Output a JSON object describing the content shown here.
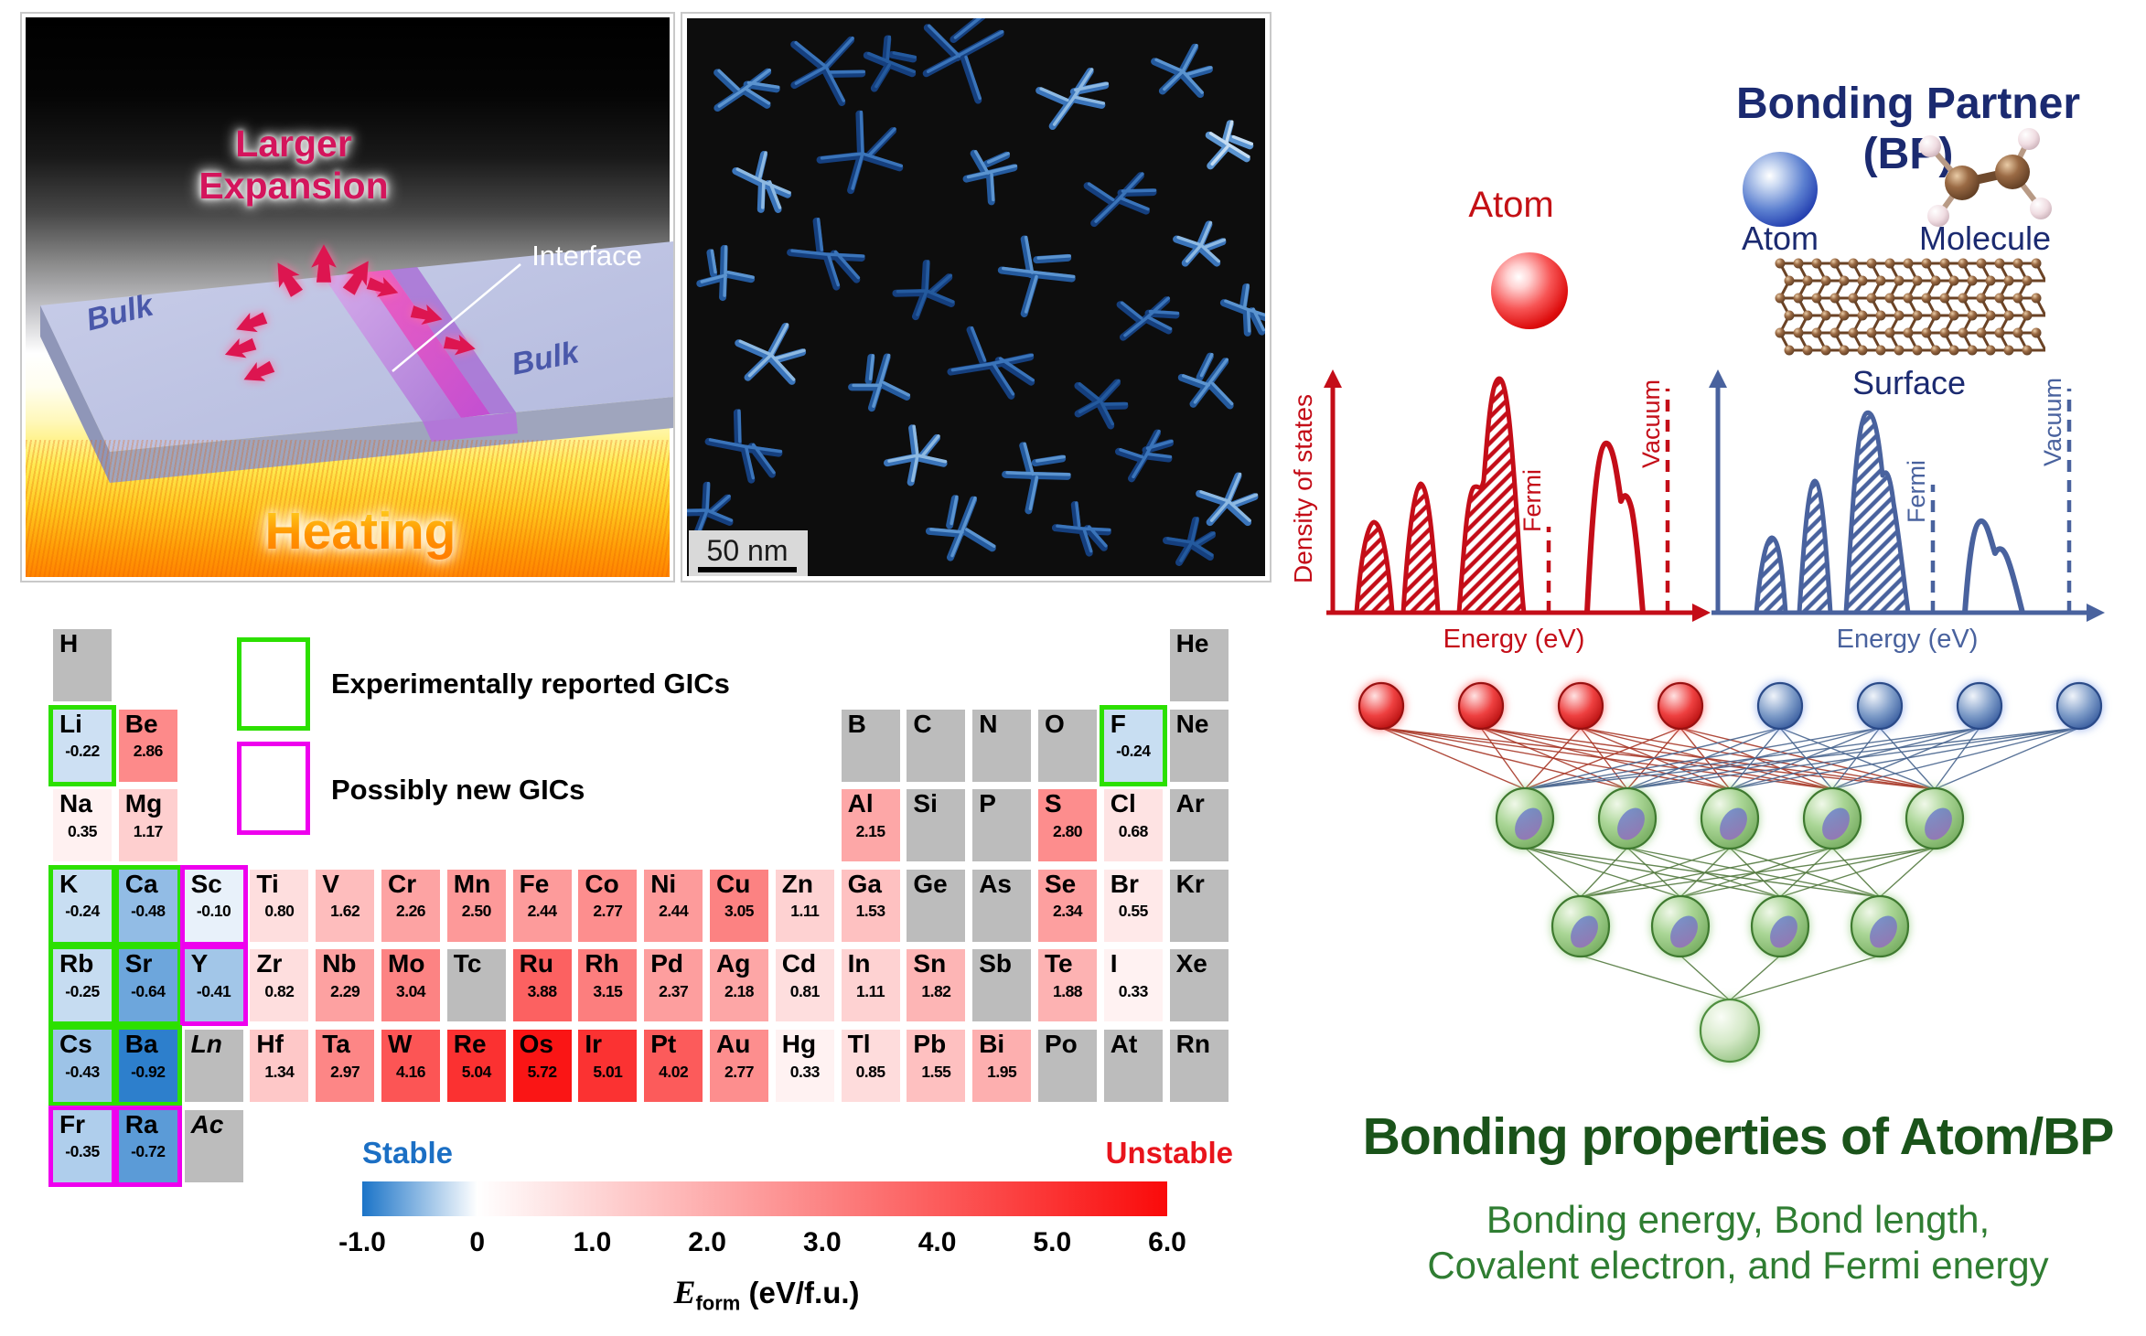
{
  "illustration": {
    "larger_line1": "Larger",
    "larger_line2": "Expansion",
    "interface": "Interface",
    "bulk_left": "Bulk",
    "bulk_right": "Bulk",
    "heating": "Heating"
  },
  "micrograph": {
    "scale_bar": "50 nm"
  },
  "periodic_table": {
    "legend": [
      {
        "label": "Experimentally reported GICs",
        "color": "#2ce000"
      },
      {
        "label": "Possibly new GICs",
        "color": "#ee00ee"
      }
    ],
    "colorbar": {
      "stable": "Stable",
      "unstable": "Unstable",
      "ticks": [
        "-1.0",
        "0",
        "1.0",
        "2.0",
        "3.0",
        "4.0",
        "5.0",
        "6.0"
      ],
      "label_e": "E",
      "label_sub": "form",
      "label_rest": " (eV/f.u.)",
      "blue": "#1b74c8",
      "red": "#fa0a0a",
      "gray": "#bcbcbc"
    },
    "elements": [
      {
        "s": "H",
        "r": 1,
        "c": 1
      },
      {
        "s": "He",
        "r": 1,
        "c": 18
      },
      {
        "s": "Li",
        "r": 2,
        "c": 1,
        "v": -0.22,
        "b": "g"
      },
      {
        "s": "Be",
        "r": 2,
        "c": 2,
        "v": 2.86
      },
      {
        "s": "B",
        "r": 2,
        "c": 13
      },
      {
        "s": "C",
        "r": 2,
        "c": 14
      },
      {
        "s": "N",
        "r": 2,
        "c": 15
      },
      {
        "s": "O",
        "r": 2,
        "c": 16
      },
      {
        "s": "F",
        "r": 2,
        "c": 17,
        "v": -0.24,
        "b": "g"
      },
      {
        "s": "Ne",
        "r": 2,
        "c": 18
      },
      {
        "s": "Na",
        "r": 3,
        "c": 1,
        "v": 0.35
      },
      {
        "s": "Mg",
        "r": 3,
        "c": 2,
        "v": 1.17
      },
      {
        "s": "Al",
        "r": 3,
        "c": 13,
        "v": 2.15
      },
      {
        "s": "Si",
        "r": 3,
        "c": 14
      },
      {
        "s": "P",
        "r": 3,
        "c": 15
      },
      {
        "s": "S",
        "r": 3,
        "c": 16,
        "v": 2.8
      },
      {
        "s": "Cl",
        "r": 3,
        "c": 17,
        "v": 0.68
      },
      {
        "s": "Ar",
        "r": 3,
        "c": 18
      },
      {
        "s": "K",
        "r": 4,
        "c": 1,
        "v": -0.24,
        "b": "g"
      },
      {
        "s": "Ca",
        "r": 4,
        "c": 2,
        "v": -0.48,
        "b": "g"
      },
      {
        "s": "Sc",
        "r": 4,
        "c": 3,
        "v": -0.1,
        "b": "m"
      },
      {
        "s": "Ti",
        "r": 4,
        "c": 4,
        "v": 0.8
      },
      {
        "s": "V",
        "r": 4,
        "c": 5,
        "v": 1.62
      },
      {
        "s": "Cr",
        "r": 4,
        "c": 6,
        "v": 2.26
      },
      {
        "s": "Mn",
        "r": 4,
        "c": 7,
        "v": 2.5
      },
      {
        "s": "Fe",
        "r": 4,
        "c": 8,
        "v": 2.44
      },
      {
        "s": "Co",
        "r": 4,
        "c": 9,
        "v": 2.77
      },
      {
        "s": "Ni",
        "r": 4,
        "c": 10,
        "v": 2.44
      },
      {
        "s": "Cu",
        "r": 4,
        "c": 11,
        "v": 3.05
      },
      {
        "s": "Zn",
        "r": 4,
        "c": 12,
        "v": 1.11
      },
      {
        "s": "Ga",
        "r": 4,
        "c": 13,
        "v": 1.53
      },
      {
        "s": "Ge",
        "r": 4,
        "c": 14
      },
      {
        "s": "As",
        "r": 4,
        "c": 15
      },
      {
        "s": "Se",
        "r": 4,
        "c": 16,
        "v": 2.34
      },
      {
        "s": "Br",
        "r": 4,
        "c": 17,
        "v": 0.55
      },
      {
        "s": "Kr",
        "r": 4,
        "c": 18
      },
      {
        "s": "Rb",
        "r": 5,
        "c": 1,
        "v": -0.25,
        "b": "g"
      },
      {
        "s": "Sr",
        "r": 5,
        "c": 2,
        "v": -0.64,
        "b": "g"
      },
      {
        "s": "Y",
        "r": 5,
        "c": 3,
        "v": -0.41,
        "b": "m"
      },
      {
        "s": "Zr",
        "r": 5,
        "c": 4,
        "v": 0.82
      },
      {
        "s": "Nb",
        "r": 5,
        "c": 5,
        "v": 2.29
      },
      {
        "s": "Mo",
        "r": 5,
        "c": 6,
        "v": 3.04
      },
      {
        "s": "Tc",
        "r": 5,
        "c": 7
      },
      {
        "s": "Ru",
        "r": 5,
        "c": 8,
        "v": 3.88
      },
      {
        "s": "Rh",
        "r": 5,
        "c": 9,
        "v": 3.15
      },
      {
        "s": "Pd",
        "r": 5,
        "c": 10,
        "v": 2.37
      },
      {
        "s": "Ag",
        "r": 5,
        "c": 11,
        "v": 2.18
      },
      {
        "s": "Cd",
        "r": 5,
        "c": 12,
        "v": 0.81
      },
      {
        "s": "In",
        "r": 5,
        "c": 13,
        "v": 1.11
      },
      {
        "s": "Sn",
        "r": 5,
        "c": 14,
        "v": 1.82
      },
      {
        "s": "Sb",
        "r": 5,
        "c": 15
      },
      {
        "s": "Te",
        "r": 5,
        "c": 16,
        "v": 1.88
      },
      {
        "s": "I",
        "r": 5,
        "c": 17,
        "v": 0.33
      },
      {
        "s": "Xe",
        "r": 5,
        "c": 18
      },
      {
        "s": "Cs",
        "r": 6,
        "c": 1,
        "v": -0.43,
        "b": "g"
      },
      {
        "s": "Ba",
        "r": 6,
        "c": 2,
        "v": -0.92,
        "b": "g"
      },
      {
        "s": "Ln",
        "r": 6,
        "c": 3,
        "i": 1
      },
      {
        "s": "Hf",
        "r": 6,
        "c": 4,
        "v": 1.34
      },
      {
        "s": "Ta",
        "r": 6,
        "c": 5,
        "v": 2.97
      },
      {
        "s": "W",
        "r": 6,
        "c": 6,
        "v": 4.16
      },
      {
        "s": "Re",
        "r": 6,
        "c": 7,
        "v": 5.04
      },
      {
        "s": "Os",
        "r": 6,
        "c": 8,
        "v": 5.72
      },
      {
        "s": "Ir",
        "r": 6,
        "c": 9,
        "v": 5.01
      },
      {
        "s": "Pt",
        "r": 6,
        "c": 10,
        "v": 4.02
      },
      {
        "s": "Au",
        "r": 6,
        "c": 11,
        "v": 2.77
      },
      {
        "s": "Hg",
        "r": 6,
        "c": 12,
        "v": 0.33
      },
      {
        "s": "Tl",
        "r": 6,
        "c": 13,
        "v": 0.85
      },
      {
        "s": "Pb",
        "r": 6,
        "c": 14,
        "v": 1.55
      },
      {
        "s": "Bi",
        "r": 6,
        "c": 15,
        "v": 1.95
      },
      {
        "s": "Po",
        "r": 6,
        "c": 16
      },
      {
        "s": "At",
        "r": 6,
        "c": 17
      },
      {
        "s": "Rn",
        "r": 6,
        "c": 18
      },
      {
        "s": "Fr",
        "r": 7,
        "c": 1,
        "v": -0.35,
        "b": "m"
      },
      {
        "s": "Ra",
        "r": 7,
        "c": 2,
        "v": -0.72,
        "b": "m"
      },
      {
        "s": "Ac",
        "r": 7,
        "c": 3,
        "i": 1
      }
    ]
  },
  "bonding": {
    "title": "Bonding Partner (BP)",
    "atom_label": "Atom",
    "bp_atom": "Atom",
    "bp_molecule": "Molecule",
    "bp_surface": "Surface",
    "dos_red": {
      "ylabel": "Density of states",
      "xlabel": "Energy (eV)",
      "fermi": "Fermi",
      "vacuum": "Vacuum"
    },
    "dos_blue": {
      "xlabel": "Energy (eV)",
      "fermi": "Fermi",
      "vacuum": "Vacuum"
    },
    "result_title": "Bonding properties of Atom/BP",
    "result_line1": "Bonding energy, Bond length,",
    "result_line2": "Covalent electron, and Fermi energy"
  }
}
